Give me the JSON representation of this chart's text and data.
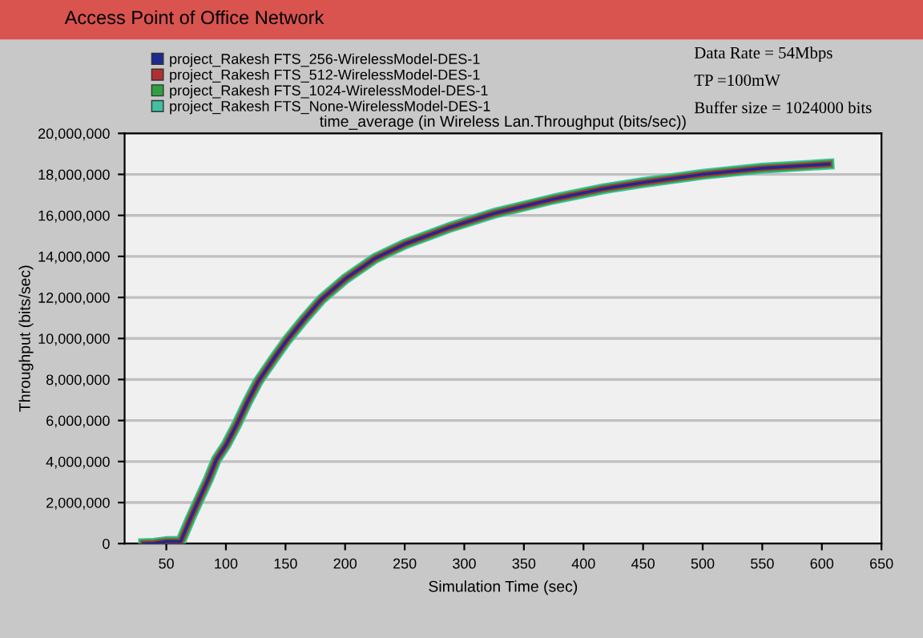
{
  "chart_data": {
    "type": "line",
    "title": "Access Point of Office Network",
    "subtitle": "time_average (in Wireless Lan.Throughput (bits/sec))",
    "xlabel": "Simulation Time (sec)",
    "ylabel": "Throughput (bits/sec)",
    "annotations": [
      "Data Rate = 54Mbps",
      "TP =100mW",
      "Buffer size = 1024000 bits"
    ],
    "x": [
      31,
      40,
      50,
      58,
      62,
      70,
      77,
      85,
      92,
      100,
      109,
      118,
      127,
      140,
      151,
      165,
      180,
      200,
      225,
      250,
      287,
      325,
      375,
      417,
      450,
      500,
      550,
      606
    ],
    "series": [
      {
        "name": "project_Rakesh FTS_256-WirelessModel-DES-1",
        "color": "#1f2a8f",
        "values": [
          0,
          20000,
          100000,
          100000,
          100000,
          1200000,
          2100000,
          3100000,
          4100000,
          4800000,
          5800000,
          6900000,
          7900000,
          9000000,
          9900000,
          10900000,
          11900000,
          12900000,
          13900000,
          14600000,
          15400000,
          16100000,
          16800000,
          17300000,
          17600000,
          18000000,
          18300000,
          18500000
        ]
      },
      {
        "name": "project_Rakesh FTS_512-WirelessModel-DES-1",
        "color": "#b03030",
        "values": [
          0,
          20000,
          100000,
          100000,
          100000,
          1200000,
          2100000,
          3100000,
          4100000,
          4800000,
          5800000,
          6900000,
          7900000,
          9000000,
          9900000,
          10900000,
          11900000,
          12900000,
          13900000,
          14600000,
          15400000,
          16100000,
          16800000,
          17300000,
          17600000,
          18000000,
          18300000,
          18500000
        ]
      },
      {
        "name": "project_Rakesh FTS_1024-WirelessModel-DES-1",
        "color": "#30a040",
        "values": [
          0,
          20000,
          100000,
          100000,
          100000,
          1200000,
          2100000,
          3100000,
          4100000,
          4800000,
          5800000,
          6900000,
          7900000,
          9000000,
          9900000,
          10900000,
          11900000,
          12900000,
          13900000,
          14600000,
          15400000,
          16100000,
          16800000,
          17300000,
          17600000,
          18000000,
          18300000,
          18500000
        ]
      },
      {
        "name": "project_Rakesh FTS_None-WirelessModel-DES-1",
        "color": "#40c0a0",
        "values": [
          0,
          20000,
          100000,
          100000,
          100000,
          1200000,
          2100000,
          3100000,
          4100000,
          4800000,
          5800000,
          6900000,
          7900000,
          9000000,
          9900000,
          10900000,
          11900000,
          12900000,
          13900000,
          14600000,
          15400000,
          16100000,
          16800000,
          17300000,
          17600000,
          18000000,
          18300000,
          18500000
        ]
      }
    ],
    "xlim": [
      15,
      650
    ],
    "xticks": [
      50,
      100,
      150,
      200,
      250,
      300,
      350,
      400,
      450,
      500,
      550,
      600,
      650
    ],
    "ylim": [
      0,
      20000000
    ],
    "yticks": [
      {
        "value": 0,
        "label": "0"
      },
      {
        "value": 2000000,
        "label": "2,000,000"
      },
      {
        "value": 4000000,
        "label": "4,000,000"
      },
      {
        "value": 6000000,
        "label": "6,000,000"
      },
      {
        "value": 8000000,
        "label": "8,000,000"
      },
      {
        "value": 10000000,
        "label": "10,000,000"
      },
      {
        "value": 12000000,
        "label": "12,000,000"
      },
      {
        "value": 14000000,
        "label": "14,000,000"
      },
      {
        "value": 16000000,
        "label": "16,000,000"
      },
      {
        "value": 18000000,
        "label": "18,000,000"
      },
      {
        "value": 20000000,
        "label": "20,000,000"
      }
    ],
    "grid": "y",
    "legend": "top left",
    "marker": "none",
    "line_style": "solid"
  }
}
